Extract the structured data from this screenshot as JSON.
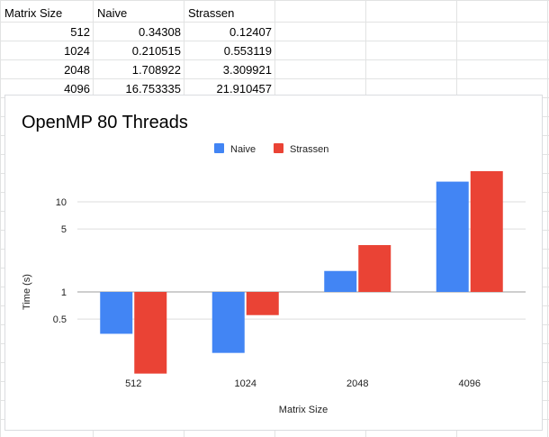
{
  "sheet": {
    "headers": [
      "Matrix Size",
      "Naive",
      "Strassen"
    ],
    "rows": [
      [
        "512",
        "0.34308",
        "0.12407"
      ],
      [
        "1024",
        "0.210515",
        "0.553119"
      ],
      [
        "2048",
        "1.708922",
        "3.309921"
      ],
      [
        "4096",
        "16.753335",
        "21.910457"
      ]
    ]
  },
  "chart_data": {
    "type": "bar",
    "title": "OpenMP 80 Threads",
    "xlabel": "Matrix Size",
    "ylabel": "Time (s)",
    "categories": [
      "512",
      "1024",
      "2048",
      "4096"
    ],
    "series": [
      {
        "name": "Naive",
        "color": "#4285f4",
        "values": [
          0.34308,
          0.210515,
          1.708922,
          16.753335
        ]
      },
      {
        "name": "Strassen",
        "color": "#ea4335",
        "values": [
          0.12407,
          0.553119,
          3.309921,
          21.910457
        ]
      }
    ],
    "yscale": "log",
    "yticks": [
      0.5,
      1,
      5,
      10
    ],
    "ytick_labels": [
      "0.5",
      "1",
      "5",
      "10"
    ],
    "ylim": [
      0.1,
      30
    ],
    "legend": "top",
    "grid": true
  }
}
